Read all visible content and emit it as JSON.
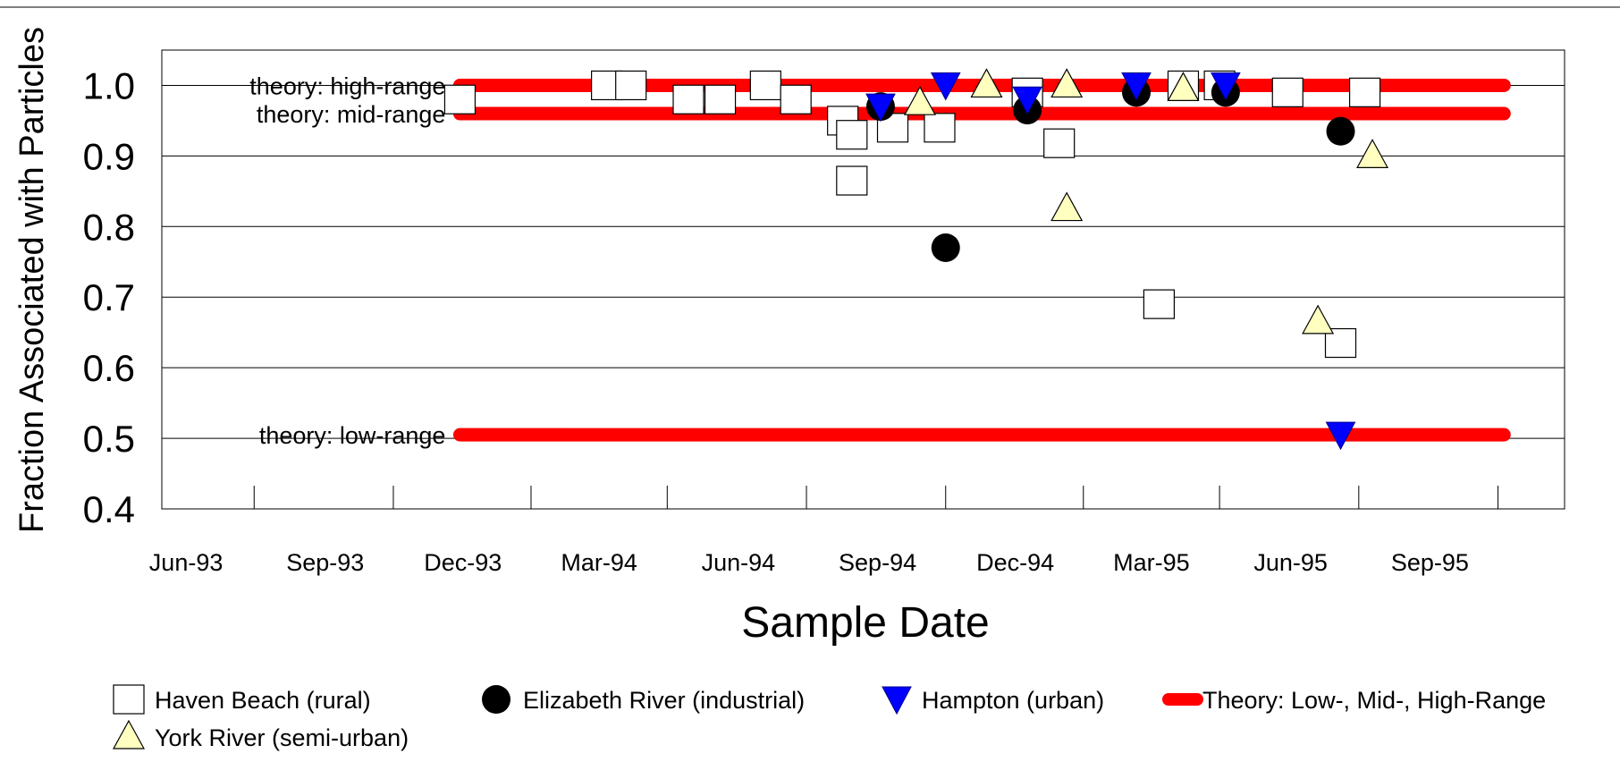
{
  "chart_data": {
    "type": "scatter",
    "title": "",
    "xlabel": "Sample Date",
    "ylabel": "Fraction Associated with Particles",
    "x_ticks": [
      "Jun-93",
      "Sep-93",
      "Dec-93",
      "Mar-94",
      "Jun-94",
      "Sep-94",
      "Dec-94",
      "Mar-95",
      "Jun-95",
      "Sep-95"
    ],
    "xlim": [
      "1993-04-01",
      "1995-10-15"
    ],
    "ylim": [
      0.4,
      1.05
    ],
    "y_ticks": [
      "0.4",
      "0.5",
      "0.6",
      "0.7",
      "0.8",
      "0.9",
      "1.0"
    ],
    "grid": "horizontal",
    "legend_position": "bottom",
    "colors": {
      "haven_beach": "#ffffff",
      "elizabeth_river": "#000000",
      "hampton": "#0000ff",
      "york_river": "#ffffc0",
      "theory": "#ff0000"
    },
    "series": [
      {
        "name": "Haven Beach (rural)",
        "marker": "open-square",
        "points": [
          {
            "x": "1993-10-15",
            "y": 0.98
          },
          {
            "x": "1994-01-20",
            "y": 1.0
          },
          {
            "x": "1994-02-05",
            "y": 1.0
          },
          {
            "x": "1994-03-15",
            "y": 0.98
          },
          {
            "x": "1994-04-05",
            "y": 0.98
          },
          {
            "x": "1994-05-05",
            "y": 1.0
          },
          {
            "x": "1994-05-25",
            "y": 0.98
          },
          {
            "x": "1994-06-25",
            "y": 0.95
          },
          {
            "x": "1994-07-01",
            "y": 0.93
          },
          {
            "x": "1994-07-01",
            "y": 0.865
          },
          {
            "x": "1994-07-28",
            "y": 0.94
          },
          {
            "x": "1994-08-28",
            "y": 0.94
          },
          {
            "x": "1994-10-25",
            "y": 0.99
          },
          {
            "x": "1994-11-15",
            "y": 0.918
          },
          {
            "x": "1995-01-20",
            "y": 0.69
          },
          {
            "x": "1995-02-05",
            "y": 1.0
          },
          {
            "x": "1995-03-01",
            "y": 1.0
          },
          {
            "x": "1995-04-15",
            "y": 0.99
          },
          {
            "x": "1995-05-20",
            "y": 0.635
          },
          {
            "x": "1995-06-05",
            "y": 0.99
          }
        ]
      },
      {
        "name": "Elizabeth River (industrial)",
        "marker": "filled-circle",
        "points": [
          {
            "x": "1994-07-20",
            "y": 0.97
          },
          {
            "x": "1994-09-01",
            "y": 0.77
          },
          {
            "x": "1994-10-25",
            "y": 0.965
          },
          {
            "x": "1995-01-05",
            "y": 0.99
          },
          {
            "x": "1995-03-05",
            "y": 0.99
          },
          {
            "x": "1995-05-20",
            "y": 0.935
          }
        ]
      },
      {
        "name": "Hampton (urban)",
        "marker": "filled-down-triangle",
        "points": [
          {
            "x": "1994-07-20",
            "y": 0.97
          },
          {
            "x": "1994-09-01",
            "y": 1.0
          },
          {
            "x": "1994-10-25",
            "y": 0.98
          },
          {
            "x": "1995-01-05",
            "y": 1.0
          },
          {
            "x": "1995-03-05",
            "y": 1.0
          },
          {
            "x": "1995-05-20",
            "y": 0.505
          }
        ]
      },
      {
        "name": "York River (semi-urban)",
        "marker": "up-triangle",
        "points": [
          {
            "x": "1994-08-15",
            "y": 0.975
          },
          {
            "x": "1994-09-28",
            "y": 1.0
          },
          {
            "x": "1994-11-20",
            "y": 1.0
          },
          {
            "x": "1994-11-20",
            "y": 0.825
          },
          {
            "x": "1995-02-05",
            "y": 0.995
          },
          {
            "x": "1995-05-05",
            "y": 0.665
          },
          {
            "x": "1995-06-10",
            "y": 0.9
          }
        ]
      }
    ],
    "theory_series": {
      "name": "Theory: Low-, Mid-, High-Range",
      "x_range": [
        "1993-10-15",
        "1995-09-05"
      ],
      "lines": [
        {
          "label": "theory: high-range",
          "y": 1.0
        },
        {
          "label": "theory: mid-range",
          "y": 0.96
        },
        {
          "label": "theory: low-range",
          "y": 0.505
        }
      ]
    }
  }
}
